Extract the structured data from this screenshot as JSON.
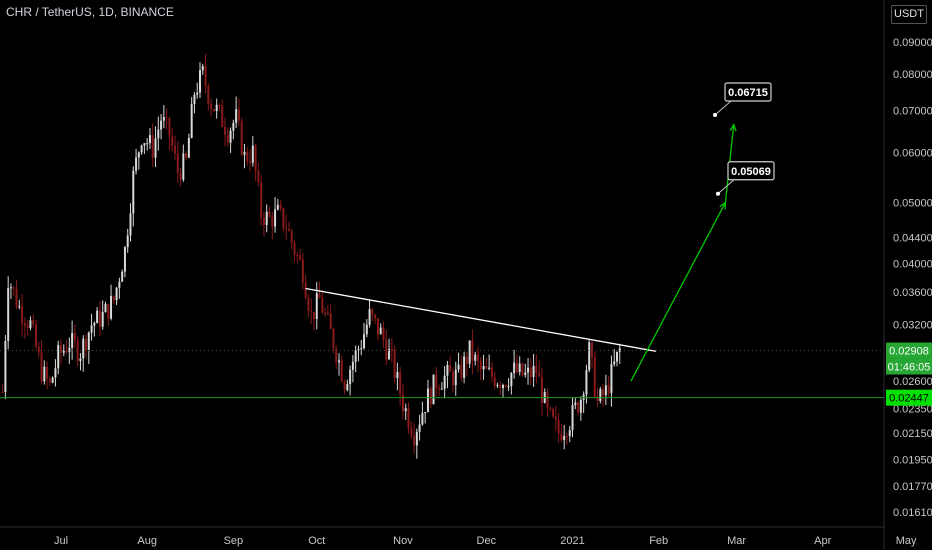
{
  "header": {
    "symbol": "CHR / TetherUS",
    "interval": "1D",
    "exchange": "BINANCE",
    "currency": "USDT"
  },
  "colors": {
    "background": "#000000",
    "up_candle": "#d9d9d9",
    "down_candle": "#8b1a1a",
    "trendline": "#ffffff",
    "projection_arrow": "#00c800",
    "support_line": "#1a9a1a",
    "price_badge": "#26a633",
    "support_badge": "#00e000"
  },
  "chart_data": {
    "type": "candlestick",
    "x_ticks": [
      "Jul",
      "Aug",
      "Sep",
      "Oct",
      "Nov",
      "Dec",
      "2021",
      "Feb",
      "Mar",
      "Apr",
      "May"
    ],
    "y_ticks": [
      "0.09000",
      "0.08000",
      "0.07000",
      "0.06000",
      "0.05000",
      "0.04400",
      "0.04000",
      "0.03600",
      "0.03200",
      "0.02600",
      "0.02350",
      "0.02150",
      "0.01950",
      "0.01770",
      "0.01610"
    ],
    "y_scale": "log",
    "ylim": [
      0.0155,
      0.094
    ],
    "last_price": "0.02908",
    "countdown": "01:46:05",
    "support_price": "0.02447",
    "targets": [
      "0.05069",
      "0.06715"
    ],
    "price_path": [
      [
        "2020-06-10",
        0.025
      ],
      [
        "2020-06-12",
        0.038
      ],
      [
        "2020-06-16",
        0.034
      ],
      [
        "2020-06-20",
        0.032
      ],
      [
        "2020-06-24",
        0.027
      ],
      [
        "2020-06-27",
        0.0255
      ],
      [
        "2020-06-30",
        0.0285
      ],
      [
        "2020-07-04",
        0.03
      ],
      [
        "2020-07-08",
        0.029
      ],
      [
        "2020-07-12",
        0.032
      ],
      [
        "2020-07-16",
        0.033
      ],
      [
        "2020-07-20",
        0.035
      ],
      [
        "2020-07-24",
        0.042
      ],
      [
        "2020-07-27",
        0.055
      ],
      [
        "2020-07-30",
        0.064
      ],
      [
        "2020-08-03",
        0.061
      ],
      [
        "2020-08-06",
        0.068
      ],
      [
        "2020-08-09",
        0.064
      ],
      [
        "2020-08-12",
        0.056
      ],
      [
        "2020-08-15",
        0.058
      ],
      [
        "2020-08-18",
        0.075
      ],
      [
        "2020-08-21",
        0.08
      ],
      [
        "2020-08-24",
        0.072
      ],
      [
        "2020-08-27",
        0.069
      ],
      [
        "2020-08-30",
        0.065
      ],
      [
        "2020-09-02",
        0.068
      ],
      [
        "2020-09-05",
        0.059
      ],
      [
        "2020-09-08",
        0.06
      ],
      [
        "2020-09-11",
        0.048
      ],
      [
        "2020-09-14",
        0.047
      ],
      [
        "2020-09-17",
        0.048
      ],
      [
        "2020-09-20",
        0.046
      ],
      [
        "2020-09-23",
        0.042
      ],
      [
        "2020-09-26",
        0.039
      ],
      [
        "2020-09-29",
        0.033
      ],
      [
        "2020-10-02",
        0.035
      ],
      [
        "2020-10-05",
        0.032
      ],
      [
        "2020-10-08",
        0.029
      ],
      [
        "2020-10-11",
        0.026
      ],
      [
        "2020-10-14",
        0.028
      ],
      [
        "2020-10-17",
        0.03
      ],
      [
        "2020-10-20",
        0.033
      ],
      [
        "2020-10-24",
        0.031
      ],
      [
        "2020-10-28",
        0.028
      ],
      [
        "2020-11-01",
        0.024
      ],
      [
        "2020-11-05",
        0.0215
      ],
      [
        "2020-11-09",
        0.024
      ],
      [
        "2020-11-13",
        0.026
      ],
      [
        "2020-11-17",
        0.0265
      ],
      [
        "2020-11-21",
        0.0265
      ],
      [
        "2020-11-25",
        0.029
      ],
      [
        "2020-11-29",
        0.027
      ],
      [
        "2020-12-03",
        0.0265
      ],
      [
        "2020-12-07",
        0.026
      ],
      [
        "2020-12-11",
        0.027
      ],
      [
        "2020-12-15",
        0.0265
      ],
      [
        "2020-12-19",
        0.027
      ],
      [
        "2020-12-23",
        0.023
      ],
      [
        "2020-12-27",
        0.0215
      ],
      [
        "2020-12-31",
        0.0225
      ],
      [
        "2021-01-04",
        0.0245
      ],
      [
        "2021-01-07",
        0.029
      ],
      [
        "2021-01-10",
        0.024
      ],
      [
        "2021-01-13",
        0.025
      ],
      [
        "2021-01-16",
        0.0275
      ],
      [
        "2021-01-18",
        0.0291
      ]
    ],
    "trendline": [
      [
        "2020-09-27",
        0.0365
      ],
      [
        "2021-01-31",
        0.029
      ]
    ],
    "projection": [
      [
        "2021-01-22",
        0.026
      ],
      [
        "2021-02-25",
        0.05
      ],
      [
        "2021-02-28",
        0.0665
      ]
    ]
  }
}
